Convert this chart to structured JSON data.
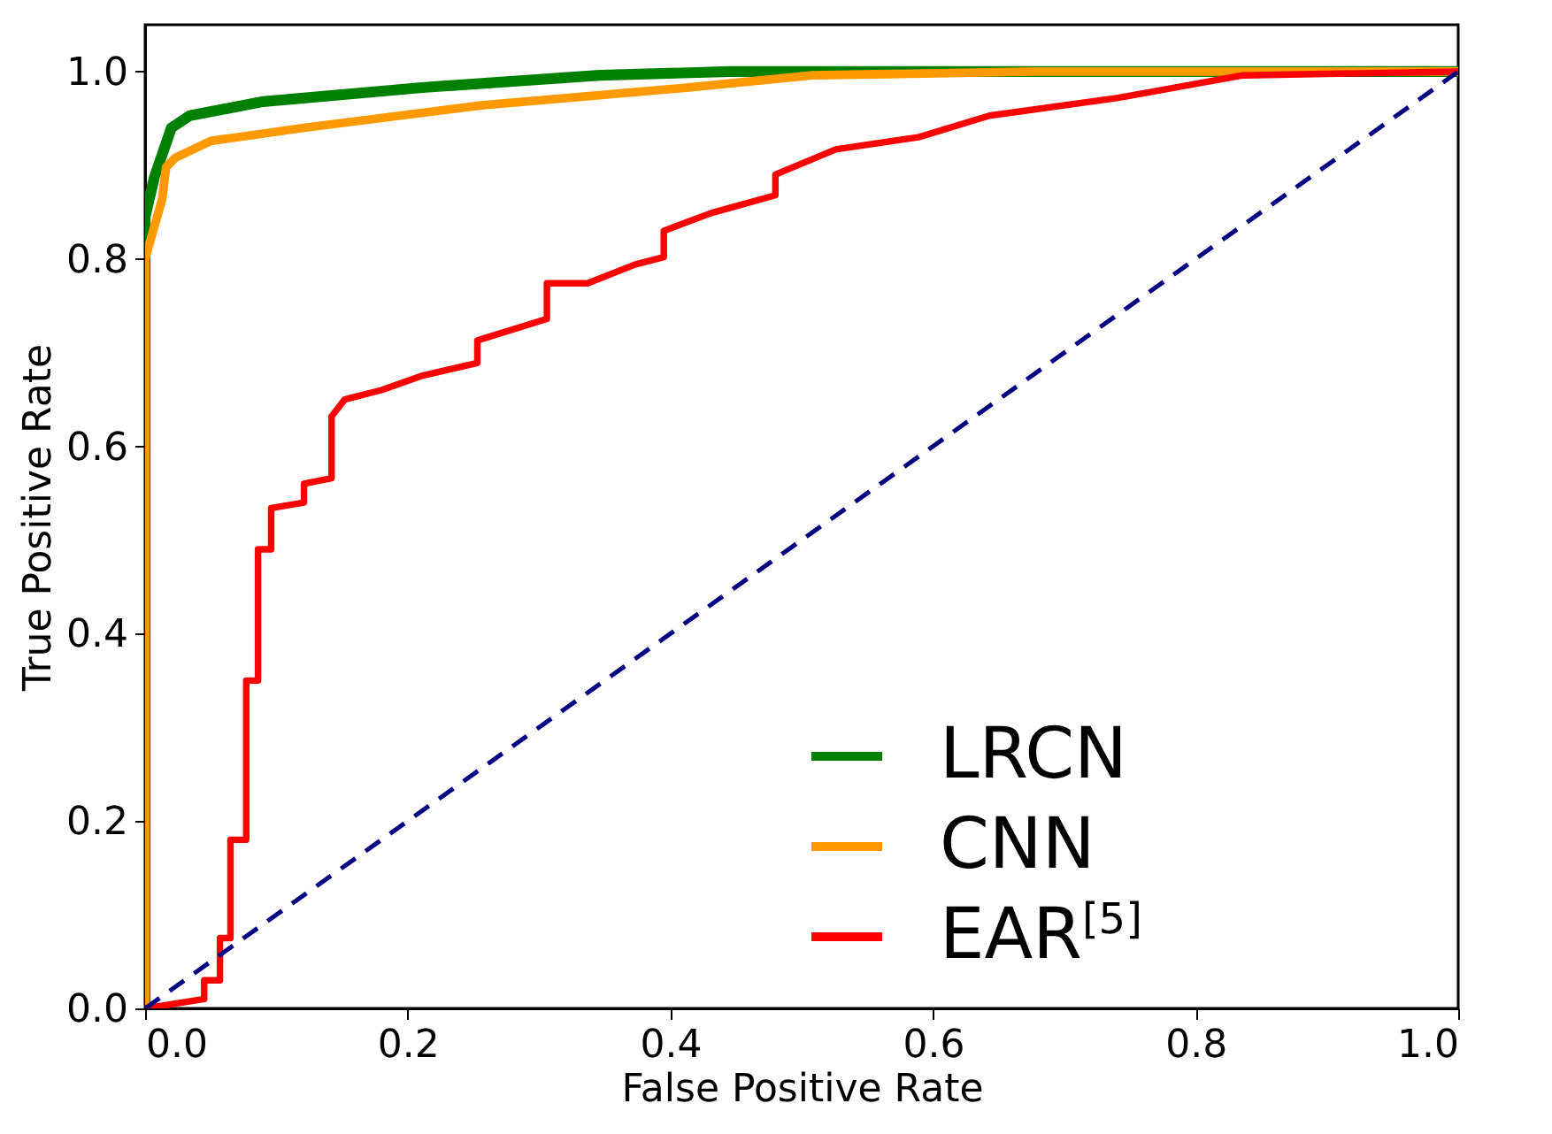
{
  "chart_data": {
    "type": "line",
    "xlabel": "False Positive Rate",
    "ylabel": "True Positive Rate",
    "xlim": [
      0,
      1
    ],
    "ylim": [
      0,
      1.05
    ],
    "xticks": [
      {
        "value": 0,
        "label": "0.0"
      },
      {
        "value": 0.2,
        "label": "0.2"
      },
      {
        "value": 0.4,
        "label": "0.4"
      },
      {
        "value": 0.6,
        "label": "0.6"
      },
      {
        "value": 0.8,
        "label": "0.8"
      },
      {
        "value": 1,
        "label": "1.0"
      }
    ],
    "yticks": [
      {
        "value": 0,
        "label": "0.0"
      },
      {
        "value": 0.2,
        "label": "0.2"
      },
      {
        "value": 0.4,
        "label": "0.4"
      },
      {
        "value": 0.6,
        "label": "0.6"
      },
      {
        "value": 0.8,
        "label": "0.8"
      },
      {
        "value": 1,
        "label": "1.0"
      }
    ],
    "legend": "bottom right",
    "series": [
      {
        "name": "LRCN",
        "color": "#008000",
        "x": [
          0,
          0,
          0.007,
          0.02,
          0.034,
          0.09,
          0.211,
          0.346,
          0.445,
          1
        ],
        "values": [
          0,
          0.845,
          0.887,
          0.94,
          0.953,
          0.968,
          0.983,
          0.996,
          1,
          1
        ]
      },
      {
        "name": "CNN",
        "color": "#ff9900",
        "x": [
          0,
          0,
          0.013,
          0.016,
          0.023,
          0.05,
          0.121,
          0.256,
          0.414,
          0.508,
          0.678,
          1
        ],
        "values": [
          0,
          0.8,
          0.864,
          0.898,
          0.908,
          0.926,
          0.94,
          0.964,
          0.983,
          0.996,
          1,
          1
        ]
      },
      {
        "name": "EAR$^{[5]}$",
        "color": "#ff0000",
        "x": [
          0,
          0.045,
          0.045,
          0.057,
          0.057,
          0.065,
          0.065,
          0.077,
          0.077,
          0.086,
          0.086,
          0.096,
          0.096,
          0.121,
          0.121,
          0.142,
          0.142,
          0.152,
          0.18,
          0.21,
          0.253,
          0.253,
          0.306,
          0.306,
          0.337,
          0.373,
          0.395,
          0.395,
          0.431,
          0.48,
          0.48,
          0.526,
          0.589,
          0.643,
          0.741,
          0.836,
          1
        ],
        "values": [
          0,
          0.01,
          0.03,
          0.03,
          0.075,
          0.075,
          0.18,
          0.18,
          0.35,
          0.35,
          0.49,
          0.49,
          0.534,
          0.54,
          0.56,
          0.566,
          0.632,
          0.65,
          0.66,
          0.675,
          0.689,
          0.713,
          0.736,
          0.774,
          0.774,
          0.794,
          0.802,
          0.83,
          0.849,
          0.868,
          0.89,
          0.917,
          0.93,
          0.953,
          0.972,
          0.996,
          1
        ]
      },
      {
        "color": "#000080",
        "line_style": "dashed",
        "x": [
          0,
          1
        ],
        "values": [
          0,
          1
        ]
      }
    ]
  }
}
